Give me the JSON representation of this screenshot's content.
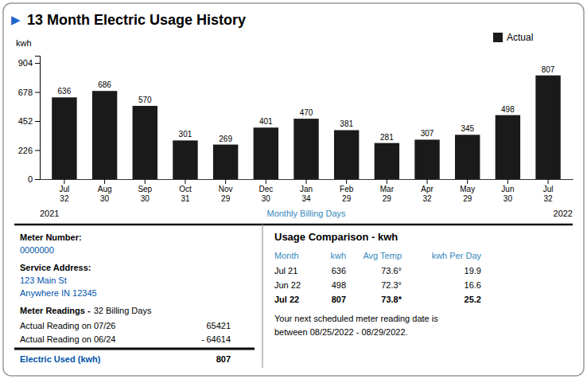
{
  "chart_data": {
    "type": "bar",
    "title": "13 Month Electric Usage History",
    "ylabel": "kwh",
    "xlabel": "Monthly Billing Days",
    "categories": [
      "Jul\n32",
      "Aug\n30",
      "Sep\n30",
      "Oct\n31",
      "Nov\n29",
      "Dec\n30",
      "Jan\n34",
      "Feb\n29",
      "Mar\n29",
      "Apr\n32",
      "May\n29",
      "Jun\n30",
      "Jul\n32"
    ],
    "series": [
      {
        "name": "Actual",
        "color": "#1a1a1a",
        "values": [
          636,
          686,
          570,
          301,
          269,
          401,
          470,
          381,
          281,
          307,
          345,
          498,
          807
        ]
      }
    ],
    "ylim": [
      0,
      960
    ],
    "yticks": [
      0,
      226,
      452,
      678,
      904
    ],
    "grid": false,
    "legend": "upper right",
    "data_labels": true,
    "annotations": [
      "▶",
      "2021",
      "2022",
      "Meter Number:",
      "0000000",
      "Service Address:",
      "123 Main St",
      "Anywhere IN 12345",
      "Meter Readings -",
      "32 Billing Days",
      "Actual Reading on 07/26",
      "65421",
      "Actual Reading on 06/24",
      "-",
      "64614",
      "Electric Used (kwh)",
      "807",
      "Your next scheduled meter reading date is\nbetween 08/25/2022 - 08/29/2022."
    ],
    "table": {
      "title": "Usage Comparison - kwh",
      "headers": [
        "Month",
        "kwh",
        "Avg Temp",
        "kwh Per Day"
      ],
      "rows": [
        [
          "Jul 21",
          "636",
          "73.6°",
          "19.9"
        ],
        [
          "Jun 22",
          "498",
          "72.3°",
          "16.6"
        ],
        [
          "Jul 22",
          "807",
          "73.8*",
          "25.2"
        ]
      ]
    }
  }
}
